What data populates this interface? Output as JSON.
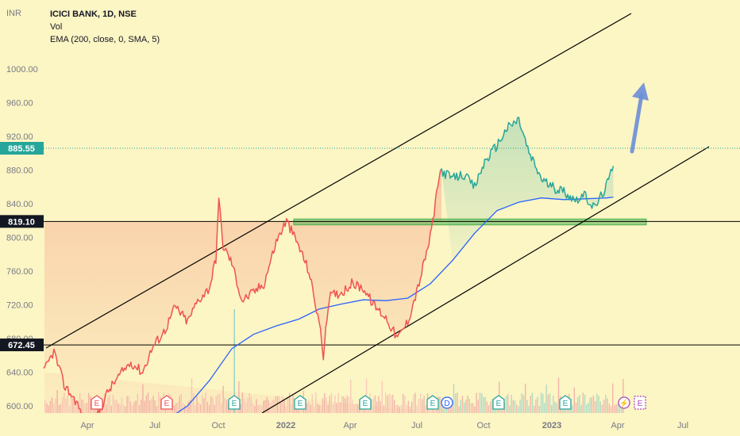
{
  "header": {
    "currency": "INR",
    "symbol_line": "ICICI BANK, 1D, NSE",
    "vol_label": "Vol",
    "ema_label": "EMA (200, close, 0, SMA, 5)"
  },
  "y_axis": {
    "ticks": [
      "1000.00",
      "960.00",
      "920.00",
      "880.00",
      "840.00",
      "800.00",
      "760.00",
      "720.00",
      "680.00",
      "640.00",
      "600.00"
    ],
    "price_badge": "885.55",
    "line_badge_upper": "819.10",
    "line_badge_lower": "672.45"
  },
  "x_axis": {
    "ticks": [
      "Apr",
      "Jul",
      "Oct",
      "2022",
      "Apr",
      "Jul",
      "Oct",
      "2023",
      "Apr",
      "Jul"
    ]
  },
  "colors": {
    "up": "#26a69a",
    "down": "#ef5350",
    "ema": "#2962ff",
    "channel": "#000000",
    "zone": "#4caf50",
    "arrow": "#6c8ed8",
    "background": "#fcf5c4"
  },
  "event_markers": [
    {
      "label": "E",
      "kind": "down"
    },
    {
      "label": "E",
      "kind": "down"
    },
    {
      "label": "E",
      "kind": "up"
    },
    {
      "label": "E",
      "kind": "up"
    },
    {
      "label": "E",
      "kind": "up"
    },
    {
      "label": "E",
      "kind": "up"
    },
    {
      "label": "D",
      "kind": "dividend"
    },
    {
      "label": "E",
      "kind": "up"
    },
    {
      "label": "E",
      "kind": "up"
    },
    {
      "label": "⚡",
      "kind": "split"
    },
    {
      "label": "E",
      "kind": "upcoming"
    }
  ],
  "chart_data": {
    "type": "line",
    "title": "ICICI BANK, 1D, NSE",
    "ylabel": "INR",
    "ylim": [
      575,
      1010
    ],
    "x_range": [
      "2021-02-15",
      "2023-07-31"
    ],
    "series": [
      {
        "name": "ICICI BANK",
        "x": [
          "2021-02-15",
          "2021-03-01",
          "2021-03-15",
          "2021-04-01",
          "2021-04-15",
          "2021-05-01",
          "2021-05-15",
          "2021-06-01",
          "2021-06-15",
          "2021-07-01",
          "2021-07-15",
          "2021-08-01",
          "2021-08-15",
          "2021-09-01",
          "2021-09-15",
          "2021-10-01",
          "2021-10-10",
          "2021-10-14",
          "2021-10-20",
          "2021-11-01",
          "2021-11-15",
          "2021-12-01",
          "2021-12-15",
          "2022-01-01",
          "2022-01-15",
          "2022-02-01",
          "2022-02-15",
          "2022-03-01",
          "2022-03-07",
          "2022-03-15",
          "2022-04-01",
          "2022-04-15",
          "2022-05-01",
          "2022-05-15",
          "2022-06-01",
          "2022-06-17",
          "2022-07-01",
          "2022-07-15",
          "2022-08-01",
          "2022-08-15",
          "2022-09-01",
          "2022-09-15",
          "2022-10-01",
          "2022-10-15",
          "2022-11-01",
          "2022-11-15",
          "2022-12-01",
          "2022-12-15",
          "2023-01-01",
          "2023-01-15",
          "2023-02-01",
          "2023-02-15",
          "2023-03-01",
          "2023-03-15",
          "2023-03-31",
          "2023-04-10"
        ],
        "values": [
          640,
          665,
          625,
          605,
          575,
          590,
          618,
          638,
          652,
          640,
          670,
          690,
          718,
          700,
          725,
          740,
          775,
          845,
          790,
          770,
          725,
          735,
          745,
          795,
          820,
          790,
          760,
          700,
          660,
          730,
          735,
          745,
          740,
          720,
          705,
          680,
          700,
          740,
          800,
          880,
          870,
          875,
          860,
          890,
          910,
          930,
          940,
          900,
          870,
          860,
          855,
          845,
          850,
          835,
          860,
          885
        ]
      },
      {
        "name": "EMA (200, close, 0, SMA, 5)",
        "x": [
          "2021-07-25",
          "2021-09-01",
          "2021-10-01",
          "2021-11-01",
          "2021-12-01",
          "2022-01-01",
          "2022-02-01",
          "2022-03-01",
          "2022-04-01",
          "2022-05-01",
          "2022-06-01",
          "2022-07-01",
          "2022-08-01",
          "2022-09-01",
          "2022-10-01",
          "2022-11-01",
          "2022-12-01",
          "2023-01-01",
          "2023-02-01",
          "2023-03-01",
          "2023-04-01",
          "2023-04-10"
        ],
        "values": [
          578,
          600,
          630,
          668,
          685,
          695,
          703,
          715,
          721,
          726,
          725,
          728,
          745,
          773,
          805,
          832,
          842,
          847,
          845,
          846,
          847,
          848
        ]
      }
    ],
    "annotations": [
      {
        "type": "horizontal_line",
        "value": 819.1
      },
      {
        "type": "horizontal_line",
        "value": 672.45
      },
      {
        "type": "zone",
        "from": 815,
        "to": 822
      },
      {
        "type": "channel_upper"
      },
      {
        "type": "channel_lower"
      },
      {
        "type": "arrow",
        "direction": "up"
      }
    ],
    "grid": false
  }
}
